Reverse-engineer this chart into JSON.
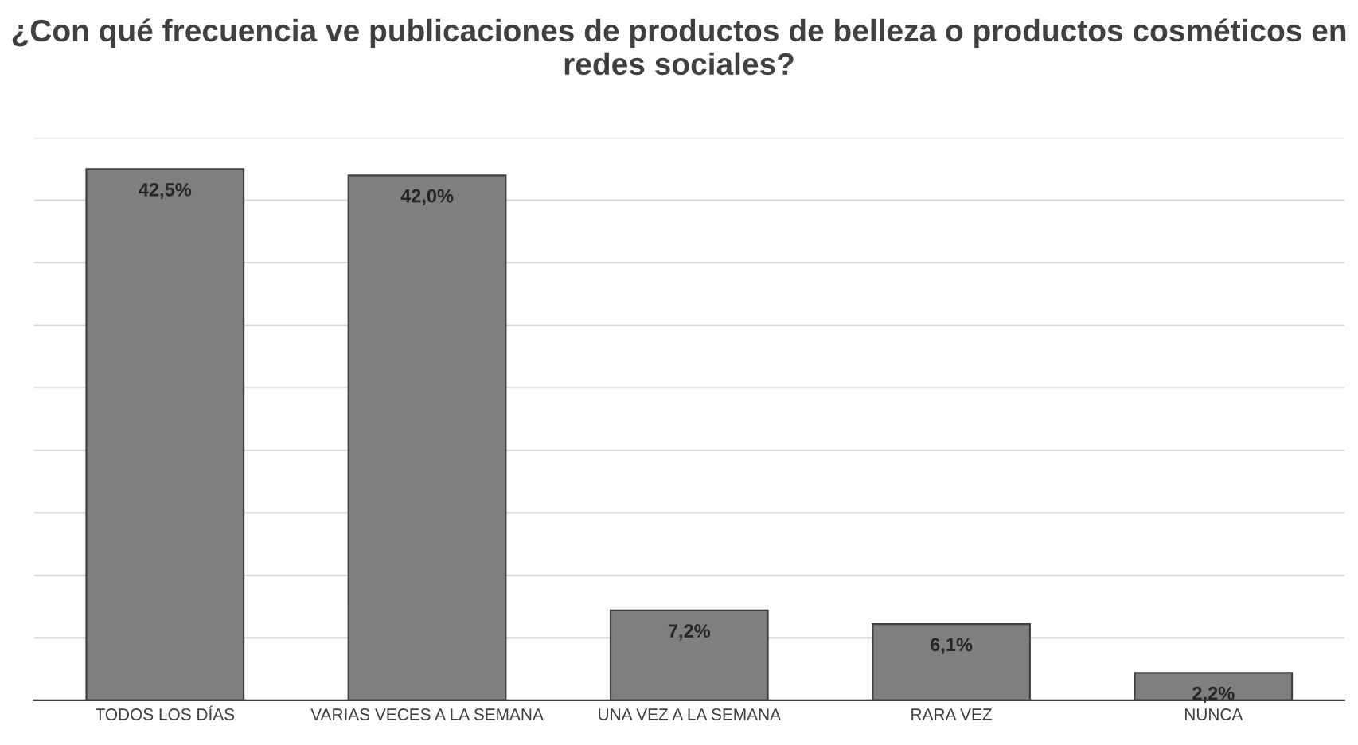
{
  "chart_data": {
    "type": "bar",
    "title": "¿Con qué frecuencia ve publicaciones de productos de belleza o productos cosméticos en redes sociales?",
    "categories": [
      "TODOS LOS DÍAS",
      "VARIAS VECES A LA SEMANA",
      "UNA VEZ A LA SEMANA",
      "RARA VEZ",
      "NUNCA"
    ],
    "values": [
      42.5,
      42.0,
      7.2,
      6.1,
      2.2
    ],
    "value_labels": [
      "42,5%",
      "42,0%",
      "7,2%",
      "6,1%",
      "2,2%"
    ],
    "color": "#7f7f7f",
    "ylim": [
      0,
      45
    ],
    "yticks": [
      {
        "value": 0,
        "label": null
      },
      {
        "value": 5,
        "label": null
      },
      {
        "value": 10,
        "label": null
      },
      {
        "value": 15,
        "label": null
      },
      {
        "value": 20,
        "label": null
      },
      {
        "value": 25,
        "label": null
      },
      {
        "value": 30,
        "label": null
      },
      {
        "value": 35,
        "label": null
      },
      {
        "value": 40,
        "label": null
      },
      {
        "value": 45,
        "label": null
      }
    ],
    "tick_labels": "x",
    "grid": "y",
    "legend": false
  }
}
